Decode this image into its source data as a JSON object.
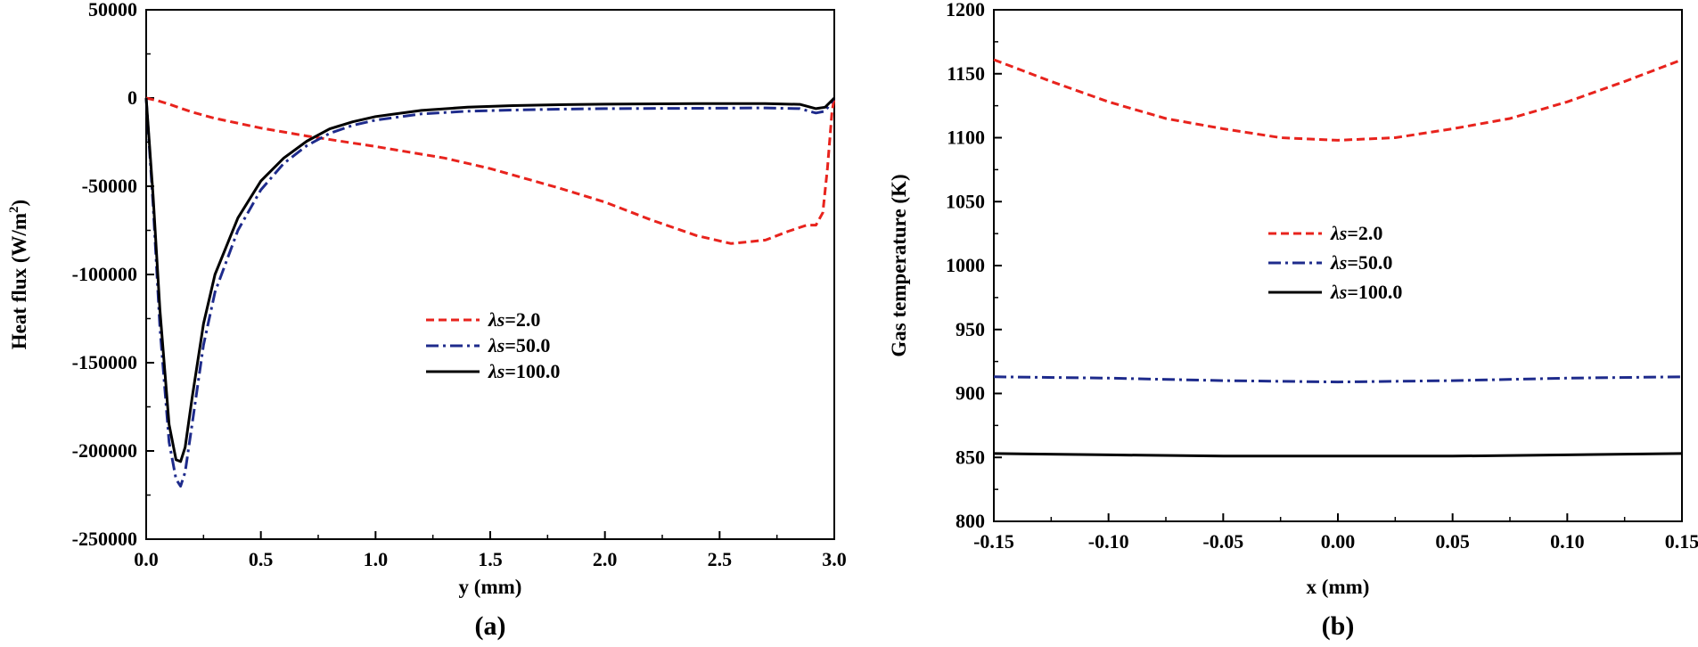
{
  "chart_data": [
    {
      "panel": "(a)",
      "type": "line",
      "xlabel": "y (mm)",
      "ylabel": "Heat flux (W/m",
      "ylabel_sup": "2",
      "ylabel_end": ")",
      "xlim": [
        0.0,
        3.0
      ],
      "ylim": [
        -250000,
        50000
      ],
      "xticks": [
        0.0,
        0.5,
        1.0,
        1.5,
        2.0,
        2.5,
        3.0
      ],
      "xtick_labels": [
        "0.0",
        "0.5",
        "1.0",
        "1.5",
        "2.0",
        "2.5",
        "3.0"
      ],
      "yticks": [
        50000,
        0,
        -50000,
        -100000,
        -150000,
        -200000,
        -250000
      ],
      "ytick_labels": [
        "50000",
        "0",
        "-50000",
        "-100000",
        "-150000",
        "-200000",
        "-250000"
      ],
      "legend_position": "center",
      "series": [
        {
          "name_symbol": "λs",
          "name_value": "=2.0",
          "color": "#e8231d",
          "dash": "dashed",
          "x": [
            0.0,
            0.05,
            0.1,
            0.2,
            0.3,
            0.5,
            0.7,
            1.0,
            1.3,
            1.5,
            1.8,
            2.0,
            2.2,
            2.4,
            2.55,
            2.7,
            2.8,
            2.88,
            2.92,
            2.95,
            2.97,
            2.99,
            3.0
          ],
          "y": [
            0,
            -1500,
            -3500,
            -8000,
            -11500,
            -17000,
            -21500,
            -27500,
            -34000,
            -40000,
            -51000,
            -59000,
            -69000,
            -78000,
            -82500,
            -80500,
            -75500,
            -72000,
            -72000,
            -65000,
            -40000,
            -8000,
            0
          ]
        },
        {
          "name_symbol": "λs",
          "name_value": "=50.0",
          "color": "#1e2b8c",
          "dash": "dashdot",
          "x": [
            0.0,
            0.03,
            0.06,
            0.1,
            0.13,
            0.15,
            0.17,
            0.2,
            0.25,
            0.3,
            0.4,
            0.5,
            0.6,
            0.7,
            0.8,
            0.9,
            1.0,
            1.2,
            1.4,
            1.6,
            1.8,
            2.0,
            2.4,
            2.7,
            2.85,
            2.92,
            2.96,
            3.0
          ],
          "y": [
            0,
            -60000,
            -130000,
            -195000,
            -216000,
            -220000,
            -212000,
            -185000,
            -140000,
            -110000,
            -75000,
            -52000,
            -37000,
            -27000,
            -20000,
            -15500,
            -12500,
            -9000,
            -7500,
            -6800,
            -6300,
            -6000,
            -5800,
            -5600,
            -6000,
            -8500,
            -7500,
            0
          ]
        },
        {
          "name_symbol": "λs",
          "name_value": "=100.0",
          "color": "#000000",
          "dash": "solid",
          "x": [
            0.0,
            0.03,
            0.06,
            0.1,
            0.13,
            0.15,
            0.17,
            0.2,
            0.25,
            0.3,
            0.4,
            0.5,
            0.6,
            0.7,
            0.8,
            0.9,
            1.0,
            1.2,
            1.4,
            1.6,
            1.8,
            2.0,
            2.4,
            2.7,
            2.85,
            2.92,
            2.96,
            3.0
          ],
          "y": [
            0,
            -55000,
            -120000,
            -185000,
            -205000,
            -206000,
            -198000,
            -170000,
            -128000,
            -100000,
            -68000,
            -47000,
            -34000,
            -24500,
            -17500,
            -13500,
            -10500,
            -7000,
            -5200,
            -4300,
            -3800,
            -3500,
            -3200,
            -3200,
            -3600,
            -6000,
            -5200,
            0
          ]
        }
      ]
    },
    {
      "panel": "(b)",
      "type": "line",
      "xlabel": "x (mm)",
      "ylabel": "Gas temperature (K)",
      "xlim": [
        -0.15,
        0.15
      ],
      "ylim": [
        800,
        1200
      ],
      "xticks": [
        -0.15,
        -0.1,
        -0.05,
        0.0,
        0.05,
        0.1,
        0.15
      ],
      "xtick_labels": [
        "-0.15",
        "-0.10",
        "-0.05",
        "0.00",
        "0.05",
        "0.10",
        "0.15"
      ],
      "yticks": [
        800,
        850,
        900,
        950,
        1000,
        1050,
        1100,
        1150,
        1200
      ],
      "ytick_labels": [
        "800",
        "850",
        "900",
        "950",
        "1000",
        "1050",
        "1100",
        "1150",
        "1200"
      ],
      "legend_position": "upper-center",
      "series": [
        {
          "name_symbol": "λs",
          "name_value": "=2.0",
          "color": "#e8231d",
          "dash": "dashed",
          "x": [
            -0.15,
            -0.125,
            -0.1,
            -0.075,
            -0.05,
            -0.025,
            0.0,
            0.025,
            0.05,
            0.075,
            0.1,
            0.125,
            0.15
          ],
          "y": [
            1161,
            1144,
            1128,
            1115,
            1107,
            1100,
            1098,
            1100,
            1107,
            1115,
            1128,
            1144,
            1161
          ]
        },
        {
          "name_symbol": "λs",
          "name_value": "=50.0",
          "color": "#1e2b8c",
          "dash": "dashdot",
          "x": [
            -0.15,
            -0.1,
            -0.05,
            0.0,
            0.05,
            0.1,
            0.15
          ],
          "y": [
            913,
            912,
            910,
            909,
            910,
            912,
            913
          ]
        },
        {
          "name_symbol": "λs",
          "name_value": "=100.0",
          "color": "#000000",
          "dash": "solid",
          "x": [
            -0.15,
            -0.1,
            -0.05,
            0.0,
            0.05,
            0.1,
            0.15
          ],
          "y": [
            853,
            852,
            851,
            851,
            851,
            852,
            853
          ]
        }
      ]
    }
  ]
}
